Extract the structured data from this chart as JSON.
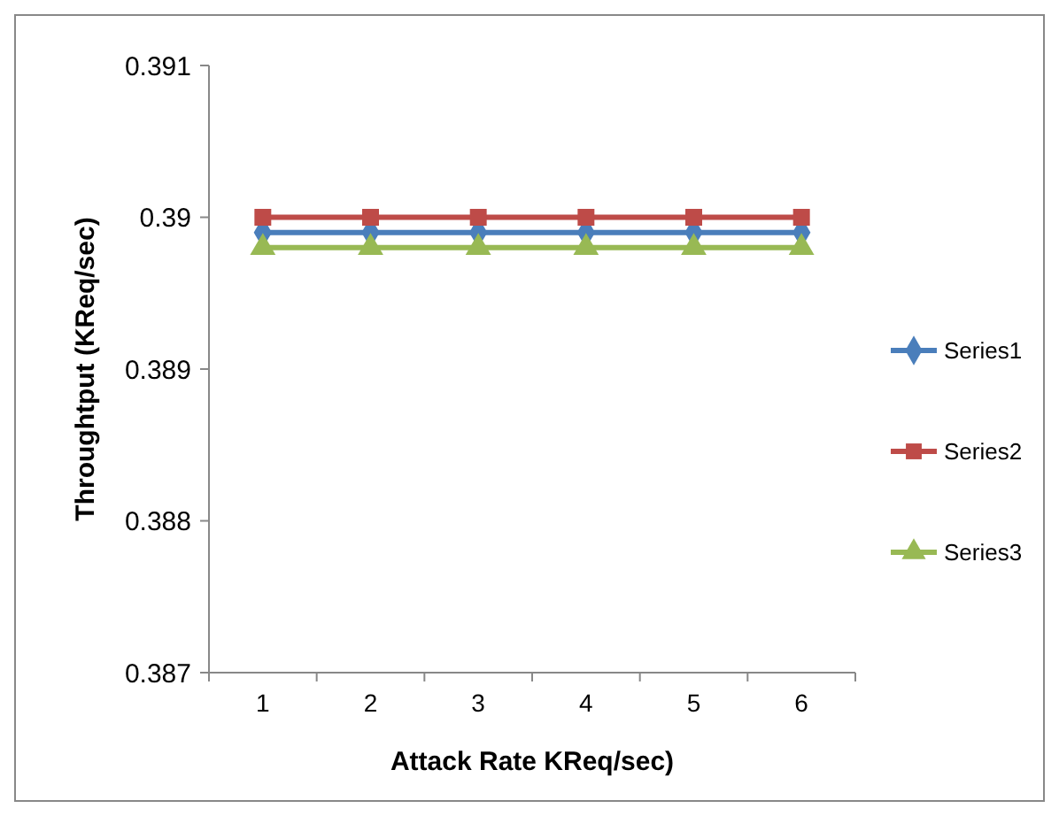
{
  "chart_data": {
    "type": "line",
    "xlabel": "Attack Rate KReq/sec)",
    "ylabel": "Throughtput (KReq/sec)",
    "categories": [
      "1",
      "2",
      "3",
      "4",
      "5",
      "6"
    ],
    "series": [
      {
        "name": "Series1",
        "color": "#4a7ebb",
        "values": [
          0.3899,
          0.3899,
          0.3899,
          0.3899,
          0.3899,
          0.3899
        ],
        "marker": "diamond"
      },
      {
        "name": "Series2",
        "color": "#be4b48",
        "values": [
          0.39,
          0.39,
          0.39,
          0.39,
          0.39,
          0.39
        ],
        "marker": "square"
      },
      {
        "name": "Series3",
        "color": "#98b954",
        "values": [
          0.3898,
          0.3898,
          0.3898,
          0.3898,
          0.3898,
          0.3898
        ],
        "marker": "triangle"
      }
    ],
    "ylim": [
      0.387,
      0.391
    ],
    "yticks": [
      0.387,
      0.388,
      0.389,
      {
        "value": 0.39,
        "label": "0.39"
      },
      0.391
    ],
    "legend": "right",
    "grid": false
  }
}
